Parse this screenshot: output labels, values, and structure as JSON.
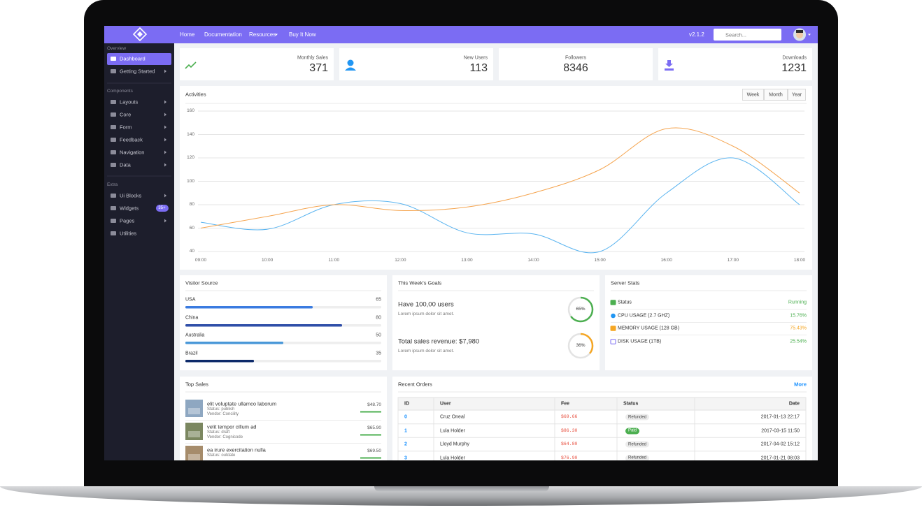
{
  "nav": {
    "links": [
      "Home",
      "Documentation",
      "Resources",
      "Buy It Now"
    ],
    "version": "v2.1.2",
    "search_placeholder": "Search..."
  },
  "sidebar": {
    "groups": [
      {
        "title": "Overview",
        "items": [
          {
            "label": "Dashboard",
            "active": true
          },
          {
            "label": "Getting Started",
            "submenu": true
          }
        ]
      },
      {
        "title": "Components",
        "items": [
          {
            "label": "Layouts",
            "submenu": true
          },
          {
            "label": "Core",
            "submenu": true
          },
          {
            "label": "Form",
            "submenu": true
          },
          {
            "label": "Feedback",
            "submenu": true
          },
          {
            "label": "Navigation",
            "submenu": true
          },
          {
            "label": "Data",
            "submenu": true
          }
        ]
      },
      {
        "title": "Extra",
        "items": [
          {
            "label": "Ui Blocks",
            "submenu": true
          },
          {
            "label": "Widgets",
            "badge": "35+"
          },
          {
            "label": "Pages",
            "submenu": true
          },
          {
            "label": "Utilities"
          }
        ]
      }
    ]
  },
  "stats": [
    {
      "label": "Monthly Sales",
      "value": 371
    },
    {
      "label": "New Users",
      "value": 113
    },
    {
      "label": "Followers",
      "value": 8346
    },
    {
      "label": "Downloads",
      "value": 1231
    }
  ],
  "chart_data": {
    "type": "line",
    "title": "Activities",
    "categories": [
      "09:00",
      "10:00",
      "11:00",
      "12:00",
      "13:00",
      "14:00",
      "15:00",
      "16:00",
      "17:00",
      "18:00"
    ],
    "series": [
      {
        "color": "#5ab4f0",
        "values": [
          65,
          59,
          80,
          81,
          56,
          55,
          40,
          90,
          120,
          80
        ]
      },
      {
        "color": "#f5a550",
        "values": [
          60,
          70,
          80,
          75,
          78,
          90,
          110,
          145,
          130,
          90
        ]
      }
    ],
    "ylim": [
      40,
      160
    ],
    "yticks": [
      40,
      60,
      80,
      100,
      120,
      140,
      160
    ],
    "grid": true,
    "smooth": true
  },
  "chart_buttons": [
    "Week",
    "Month",
    "Year"
  ],
  "visitor_source": {
    "title": "Visitor Source",
    "categories": [
      "USA",
      "China",
      "Australia",
      "Brazil"
    ],
    "values": [
      65,
      80,
      50,
      35
    ],
    "xlim": [
      0,
      100
    ],
    "colors": [
      "#3a7be0",
      "#2f4fa8",
      "#4a98d8",
      "#0d2a6a"
    ]
  },
  "goals": {
    "title": "This Week's Goals",
    "items": [
      {
        "title": "Have 100,00 users",
        "description": "Lorem ipsum dolor sit amet.",
        "value": 65,
        "value_label": "65%",
        "color": "#4caf50"
      },
      {
        "title": "Total sales revenue: $7,980",
        "description": "Lorem ipsum dolor sit amet.",
        "value": 36,
        "value_label": "36%",
        "color": "#f5a623"
      }
    ]
  },
  "server_stats": {
    "title": "Server Stats",
    "rows": [
      {
        "label": "Status",
        "value": "Running",
        "color": "#4caf50"
      },
      {
        "label": "CPU USAGE (2.7 GHZ)",
        "value": "15.76%",
        "color": "#4caf50"
      },
      {
        "label": "MEMORY USAGE (128 GB)",
        "value": "75.43%",
        "color": "#f5a623"
      },
      {
        "label": "DISK USAGE (1TB)",
        "value": "25.54%",
        "color": "#4caf50"
      }
    ]
  },
  "top_sales": {
    "title": "Top Sales",
    "items": [
      {
        "name": "elit voluptate ullamco laborum",
        "status": "Status: publish",
        "vendor": "Vendor: Concility",
        "price": "$48.70"
      },
      {
        "name": "velit tempor cillum ad",
        "status": "Status: draft",
        "vendor": "Vendor: Cognicode",
        "price": "$65.90"
      },
      {
        "name": "ea irure exercitation nulla",
        "status": "Status: outdate",
        "price": "$69.50"
      }
    ]
  },
  "recent_orders": {
    "title": "Recent Orders",
    "more": "More",
    "columns": [
      "ID",
      "User",
      "Fee",
      "Status",
      "Date"
    ],
    "rows": [
      {
        "id": 0,
        "user": "Cruz Oneal",
        "fee": "$69.66",
        "status": "Refunded",
        "badge_color": "#ececec",
        "badge_text": "#444",
        "date": "2017-01-13 22:17"
      },
      {
        "id": 1,
        "user": "Lula Holder",
        "fee": "$86.30",
        "status": "Paid",
        "badge_color": "#4caf50",
        "badge_text": "#fff",
        "date": "2017-03-15 11:50"
      },
      {
        "id": 2,
        "user": "Lloyd Murphy",
        "fee": "$64.80",
        "status": "Refunded",
        "badge_color": "#ececec",
        "badge_text": "#444",
        "date": "2017-04-02 15:12"
      },
      {
        "id": 3,
        "user": "Lula Holder",
        "fee": "$76.90",
        "status": "Refunded",
        "badge_color": "#ececec",
        "badge_text": "#444",
        "date": "2017-01-21 08:03"
      }
    ]
  }
}
